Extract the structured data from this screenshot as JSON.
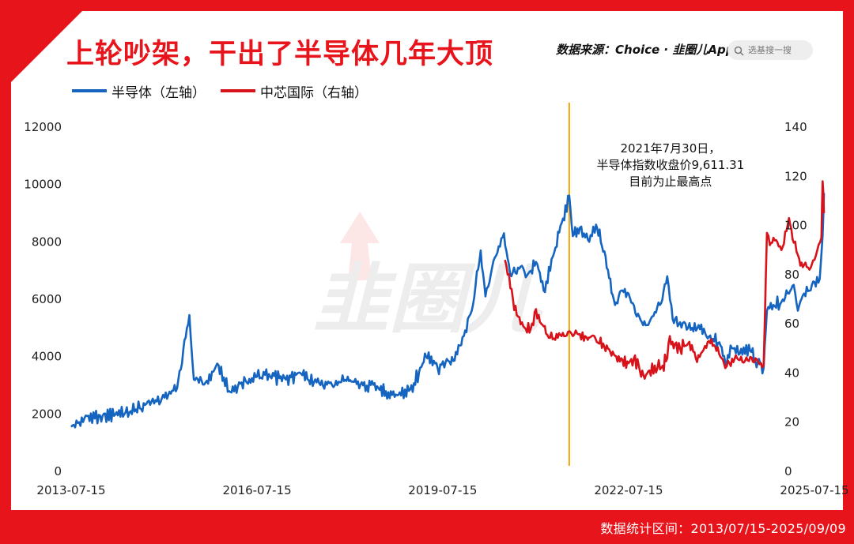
{
  "header": {
    "title": "上轮吵架，干出了半导体几年大顶",
    "source": "数据来源：Choice · 韭圈儿App",
    "search_placeholder": "选基搜一搜",
    "watermark": "韭圈儿"
  },
  "footer": {
    "range_text": "数据统计区间：2013/07/15-2025/09/09"
  },
  "colors": {
    "brand_red": "#e8141b",
    "semiconductor": "#1565c0",
    "smic": "#d7121a",
    "marker": "#f5a300"
  },
  "chart_data": {
    "type": "line",
    "title": "上轮吵架，干出了半导体几年大顶",
    "x_ticks": [
      "2013-07-15",
      "2016-07-15",
      "2019-07-15",
      "2022-07-15",
      "2025-07-15"
    ],
    "y_left": {
      "ylim": [
        0,
        12000
      ],
      "ticks": [
        "0",
        "2000",
        "4000",
        "6000",
        "8000",
        "10000",
        "12000"
      ]
    },
    "y_right": {
      "ylim": [
        0,
        140
      ],
      "ticks": [
        "0",
        "20",
        "40",
        "60",
        "80",
        "100",
        "120",
        "140"
      ]
    },
    "legend_position": "top-left",
    "grid": false,
    "series": [
      {
        "name": "半导体（左轴）",
        "axis": "left",
        "color": "#1565c0",
        "x": [
          "2013-07-15",
          "2013-10-01",
          "2014-01-01",
          "2014-04-01",
          "2014-07-01",
          "2014-10-01",
          "2015-01-01",
          "2015-04-01",
          "2015-06-12",
          "2015-07-08",
          "2015-09-15",
          "2015-12-01",
          "2016-02-01",
          "2016-04-15",
          "2016-07-15",
          "2016-10-01",
          "2017-01-01",
          "2017-04-01",
          "2017-07-01",
          "2017-10-01",
          "2018-01-01",
          "2018-04-01",
          "2018-07-01",
          "2018-10-19",
          "2019-01-04",
          "2019-02-25",
          "2019-04-08",
          "2019-06-15",
          "2019-08-01",
          "2019-09-15",
          "2019-11-01",
          "2020-01-02",
          "2020-02-24",
          "2020-03-23",
          "2020-05-01",
          "2020-07-10",
          "2020-08-15",
          "2020-10-01",
          "2020-12-01",
          "2021-01-15",
          "2021-03-01",
          "2021-05-10",
          "2021-07-30",
          "2021-08-20",
          "2021-10-01",
          "2021-11-25",
          "2022-01-04",
          "2022-03-01",
          "2022-04-26",
          "2022-06-01",
          "2022-07-15",
          "2022-09-01",
          "2022-10-31",
          "2022-12-01",
          "2023-01-15",
          "2023-02-28",
          "2023-04-01",
          "2023-05-15",
          "2023-07-01",
          "2023-09-01",
          "2023-11-01",
          "2024-01-01",
          "2024-02-05",
          "2024-03-15",
          "2024-05-01",
          "2024-07-01",
          "2024-08-15",
          "2024-09-18",
          "2024-10-08",
          "2024-11-15",
          "2025-01-01",
          "2025-02-15",
          "2025-03-15",
          "2025-04-08",
          "2025-05-15",
          "2025-06-15",
          "2025-07-15",
          "2025-08-15",
          "2025-09-01",
          "2025-09-09"
        ],
        "values": [
          1550,
          1850,
          1950,
          1980,
          2100,
          2350,
          2550,
          2900,
          5450,
          3200,
          3100,
          3700,
          2800,
          3100,
          3300,
          3300,
          3200,
          3400,
          3100,
          3000,
          3300,
          3000,
          2900,
          2650,
          2850,
          3450,
          4000,
          3600,
          3800,
          3850,
          4400,
          5600,
          7700,
          6100,
          7100,
          8300,
          6900,
          7100,
          6900,
          7300,
          6300,
          7800,
          9611,
          8200,
          8500,
          8000,
          8600,
          7500,
          5800,
          6300,
          6200,
          5400,
          5100,
          5400,
          5800,
          6800,
          5300,
          5200,
          5000,
          5100,
          4700,
          4500,
          3800,
          4300,
          4100,
          4200,
          3800,
          3600,
          5600,
          5800,
          5900,
          6200,
          6500,
          5600,
          6200,
          6300,
          6600,
          6700,
          8200,
          9700
        ]
      },
      {
        "name": "中芯国际（右轴）",
        "axis": "right",
        "color": "#d7121a",
        "x": [
          "2020-07-16",
          "2020-08-01",
          "2020-09-01",
          "2020-10-01",
          "2020-11-01",
          "2020-12-15",
          "2021-01-15",
          "2021-02-15",
          "2021-03-15",
          "2021-05-01",
          "2021-06-15",
          "2021-07-30",
          "2021-08-20",
          "2021-09-15",
          "2021-11-01",
          "2022-01-01",
          "2022-02-15",
          "2022-03-15",
          "2022-04-26",
          "2022-06-01",
          "2022-07-15",
          "2022-08-15",
          "2022-10-11",
          "2022-11-15",
          "2023-01-01",
          "2023-02-01",
          "2023-02-28",
          "2023-03-15",
          "2023-04-15",
          "2023-05-15",
          "2023-07-01",
          "2023-08-15",
          "2023-09-15",
          "2023-11-01",
          "2023-12-15",
          "2024-01-15",
          "2024-02-05",
          "2024-03-01",
          "2024-04-15",
          "2024-06-01",
          "2024-08-01",
          "2024-09-18",
          "2024-10-08",
          "2024-10-25",
          "2024-11-15",
          "2025-01-01",
          "2025-02-15",
          "2025-03-15",
          "2025-04-08",
          "2025-05-15",
          "2025-06-15",
          "2025-07-15",
          "2025-08-01",
          "2025-08-25",
          "2025-09-01",
          "2025-09-09"
        ],
        "values": [
          86,
          80,
          70,
          63,
          59,
          58,
          66,
          60,
          56,
          54,
          55,
          57,
          55,
          56,
          55,
          54,
          52,
          50,
          47,
          46,
          44,
          46,
          39,
          41,
          42,
          43,
          46,
          55,
          52,
          50,
          52,
          46,
          48,
          53,
          49,
          46,
          42,
          44,
          46,
          45,
          46,
          43,
          97,
          92,
          95,
          90,
          103,
          93,
          88,
          84,
          82,
          86,
          90,
          95,
          118,
          105
        ]
      }
    ],
    "annotation": {
      "date": "2021-07-30",
      "lines": [
        "2021年7月30日，",
        "半导体指数收盘价9,611.31",
        "目前为止最高点"
      ]
    }
  }
}
